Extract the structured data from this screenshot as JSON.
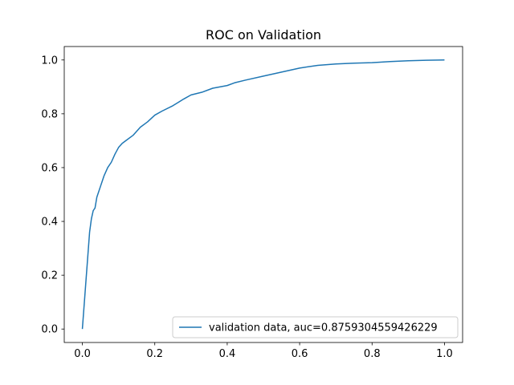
{
  "chart_data": {
    "type": "line",
    "title": "ROC on Validation",
    "xlabel": "",
    "ylabel": "",
    "xlim": [
      -0.05,
      1.05
    ],
    "ylim": [
      -0.05,
      1.05
    ],
    "xticks": [
      0.0,
      0.2,
      0.4,
      0.6,
      0.8,
      1.0
    ],
    "yticks": [
      0.0,
      0.2,
      0.4,
      0.6,
      0.8,
      1.0
    ],
    "xtick_labels": [
      "0.0",
      "0.2",
      "0.4",
      "0.6",
      "0.8",
      "1.0"
    ],
    "ytick_labels": [
      "0.0",
      "0.2",
      "0.4",
      "0.6",
      "0.8",
      "1.0"
    ],
    "grid": false,
    "legend_position": "lower-right",
    "series": [
      {
        "name": "validation data, auc=0.8759304559426229",
        "color": "#1f77b4",
        "x": [
          0.0,
          0.005,
          0.01,
          0.015,
          0.02,
          0.025,
          0.03,
          0.035,
          0.04,
          0.05,
          0.06,
          0.07,
          0.08,
          0.09,
          0.1,
          0.11,
          0.12,
          0.14,
          0.16,
          0.18,
          0.2,
          0.22,
          0.25,
          0.28,
          0.3,
          0.33,
          0.36,
          0.4,
          0.42,
          0.45,
          0.5,
          0.55,
          0.6,
          0.65,
          0.7,
          0.75,
          0.8,
          0.85,
          0.9,
          0.95,
          1.0
        ],
        "y": [
          0.0,
          0.09,
          0.18,
          0.27,
          0.36,
          0.41,
          0.44,
          0.45,
          0.49,
          0.53,
          0.57,
          0.6,
          0.62,
          0.65,
          0.675,
          0.69,
          0.7,
          0.72,
          0.75,
          0.77,
          0.795,
          0.81,
          0.83,
          0.855,
          0.87,
          0.88,
          0.895,
          0.905,
          0.915,
          0.925,
          0.94,
          0.955,
          0.97,
          0.98,
          0.985,
          0.988,
          0.99,
          0.994,
          0.997,
          0.999,
          1.0
        ]
      }
    ]
  }
}
